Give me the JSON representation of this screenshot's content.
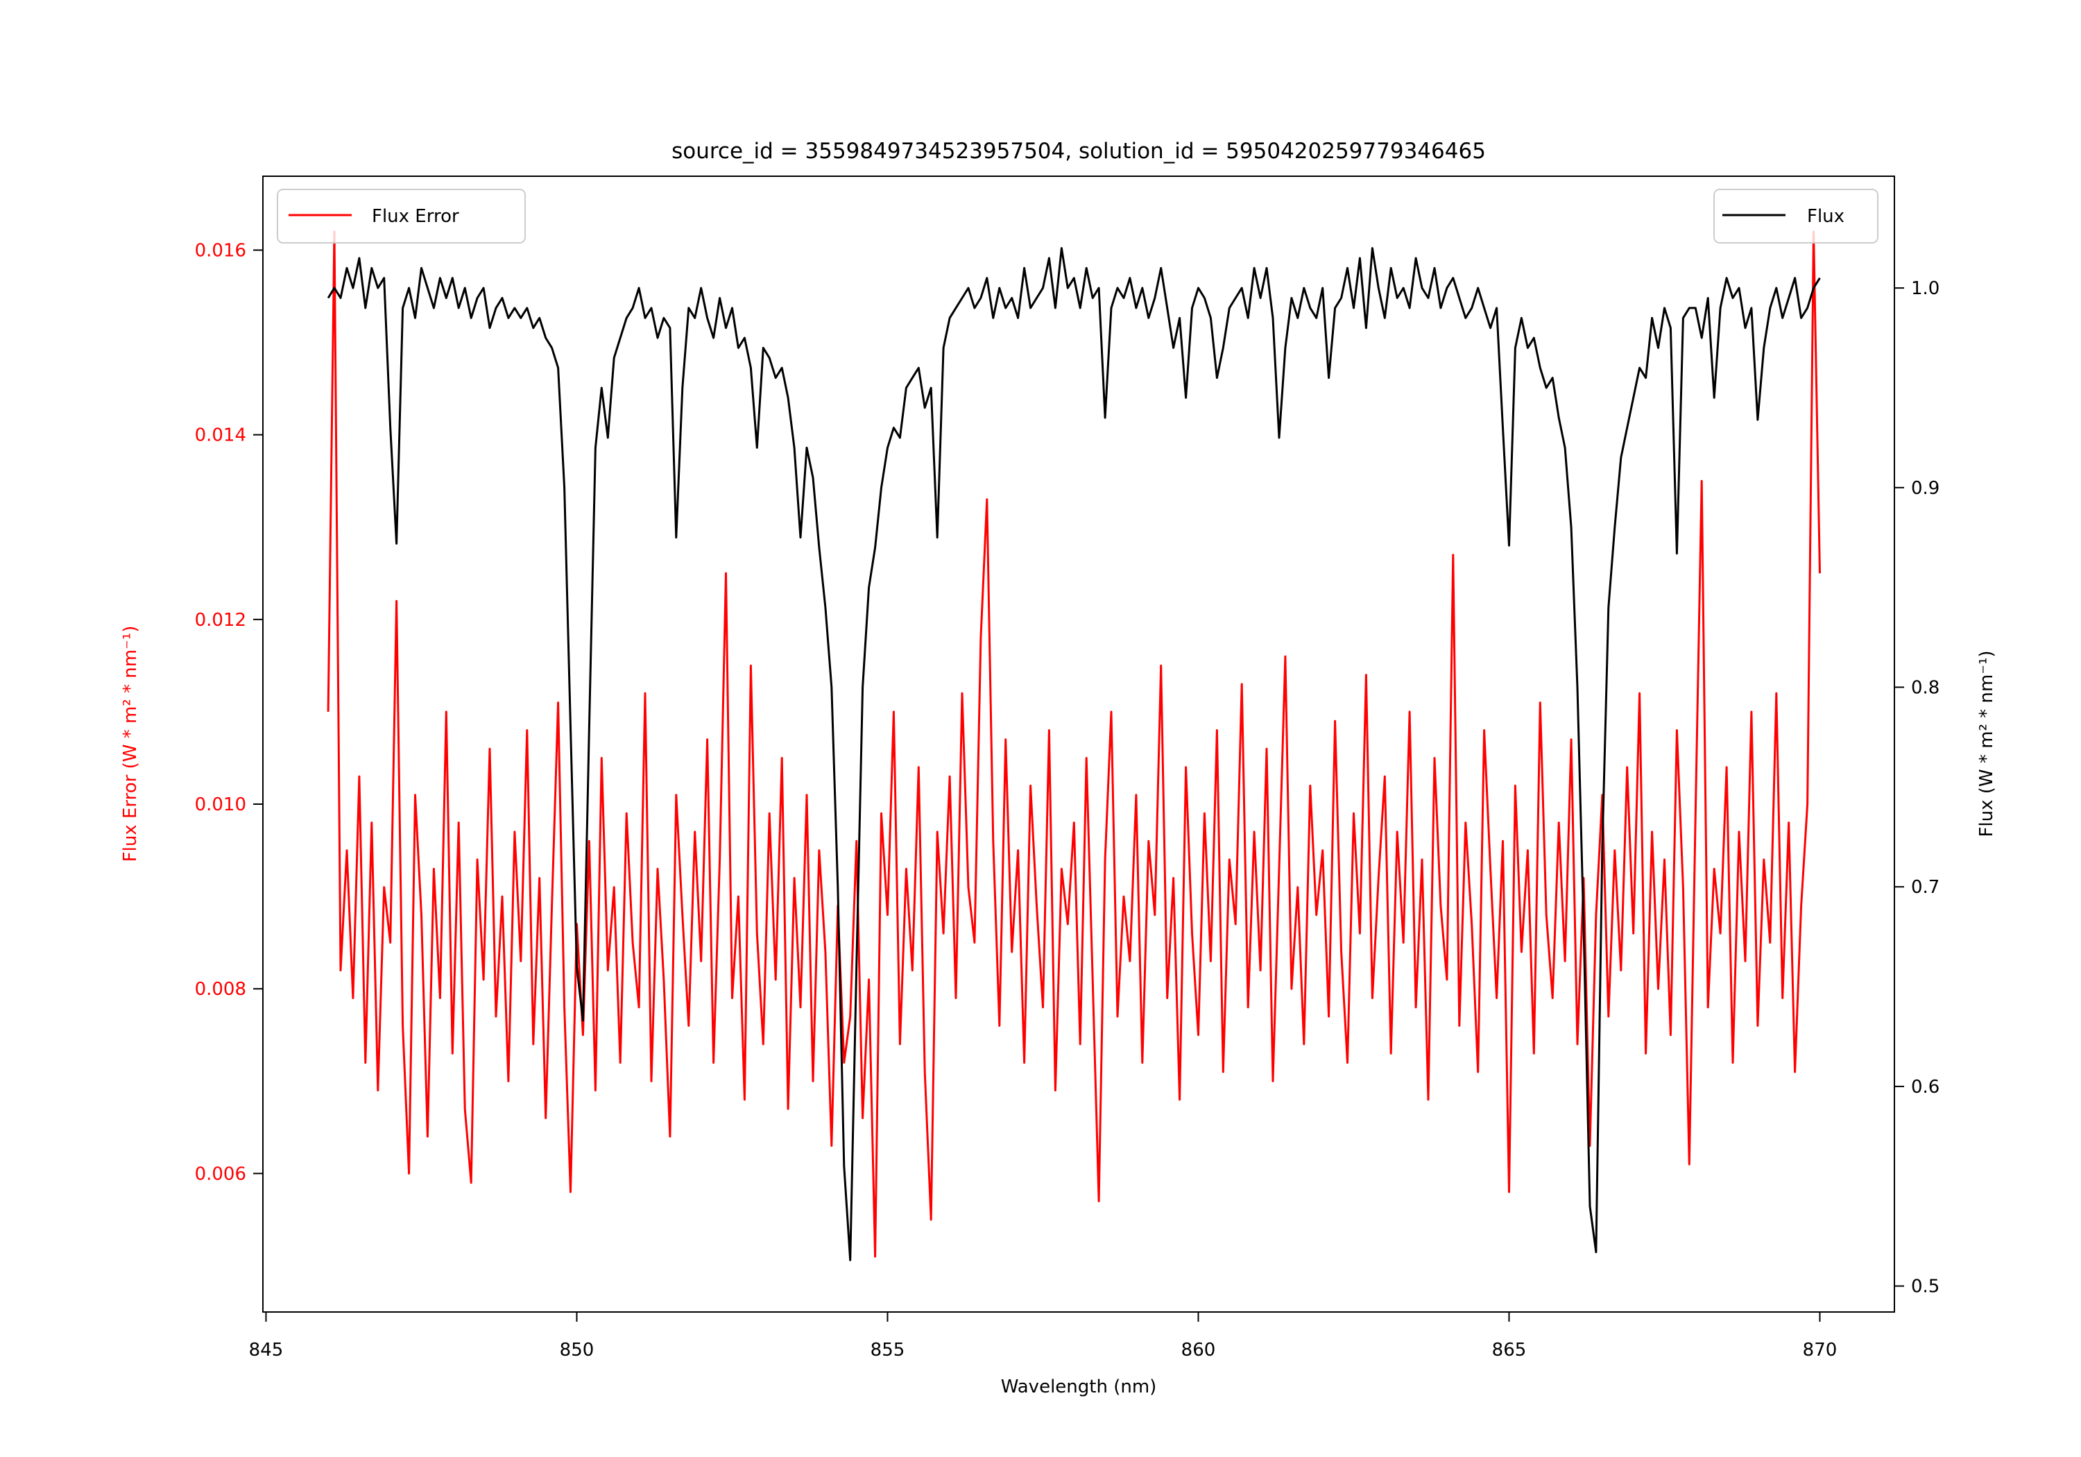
{
  "chart_data": {
    "type": "line",
    "title": "source_id = 3559849734523957504, solution_id = 5950420259779346465",
    "xlabel": "Wavelength (nm)",
    "ylabel_left": "Flux Error (W * m² * nm⁻¹)",
    "ylabel_right": "Flux (W * m² * nm⁻¹)",
    "xlim": [
      844.95,
      871.2
    ],
    "ylim_left": [
      0.0045,
      0.0168
    ],
    "ylim_right": [
      0.487,
      1.056
    ],
    "grid": false,
    "x_ticks": [
      845,
      850,
      855,
      860,
      865,
      870
    ],
    "x_tick_labels": [
      "845",
      "850",
      "855",
      "860",
      "865",
      "870"
    ],
    "y_left_ticks": [
      0.006,
      0.008,
      0.01,
      0.012,
      0.014,
      0.016
    ],
    "y_left_tick_labels": [
      "0.006",
      "0.008",
      "0.010",
      "0.012",
      "0.014",
      "0.016"
    ],
    "y_right_ticks": [
      0.5,
      0.6,
      0.7,
      0.8,
      0.9,
      1.0
    ],
    "y_right_tick_labels": [
      "0.5",
      "0.6",
      "0.7",
      "0.8",
      "0.9",
      "1.0"
    ],
    "x_start": 846.0,
    "x_step": 0.1,
    "series": [
      {
        "name": "Flux Error",
        "axis": "left",
        "color": "#ff0000",
        "legend": "upper-left",
        "values": [
          0.011,
          0.0162,
          0.0082,
          0.0095,
          0.0079,
          0.0103,
          0.0072,
          0.0098,
          0.0069,
          0.0091,
          0.0085,
          0.0122,
          0.0076,
          0.006,
          0.0101,
          0.0088,
          0.0064,
          0.0093,
          0.0079,
          0.011,
          0.0073,
          0.0098,
          0.0067,
          0.0059,
          0.0094,
          0.0081,
          0.0106,
          0.0077,
          0.009,
          0.007,
          0.0097,
          0.0083,
          0.0108,
          0.0074,
          0.0092,
          0.0066,
          0.0089,
          0.0111,
          0.0078,
          0.0058,
          0.0087,
          0.0075,
          0.0096,
          0.0069,
          0.0105,
          0.0082,
          0.0091,
          0.0072,
          0.0099,
          0.0085,
          0.0078,
          0.0112,
          0.007,
          0.0093,
          0.0081,
          0.0064,
          0.0101,
          0.0088,
          0.0076,
          0.0097,
          0.0083,
          0.0107,
          0.0072,
          0.0094,
          0.0125,
          0.0079,
          0.009,
          0.0068,
          0.0115,
          0.0086,
          0.0074,
          0.0099,
          0.0081,
          0.0105,
          0.0067,
          0.0092,
          0.0078,
          0.0101,
          0.007,
          0.0095,
          0.0084,
          0.0063,
          0.0089,
          0.0072,
          0.0077,
          0.0096,
          0.0066,
          0.0081,
          0.0051,
          0.0099,
          0.0088,
          0.011,
          0.0074,
          0.0093,
          0.0082,
          0.0104,
          0.0071,
          0.0055,
          0.0097,
          0.0086,
          0.0103,
          0.0079,
          0.0112,
          0.0091,
          0.0085,
          0.0118,
          0.0133,
          0.0096,
          0.0076,
          0.0107,
          0.0084,
          0.0095,
          0.0072,
          0.0102,
          0.0089,
          0.0078,
          0.0108,
          0.0069,
          0.0093,
          0.0087,
          0.0098,
          0.0074,
          0.0105,
          0.0081,
          0.0057,
          0.0094,
          0.011,
          0.0077,
          0.009,
          0.0083,
          0.0101,
          0.0072,
          0.0096,
          0.0088,
          0.0115,
          0.0079,
          0.0092,
          0.0068,
          0.0104,
          0.0086,
          0.0075,
          0.0099,
          0.0083,
          0.0108,
          0.0071,
          0.0094,
          0.0087,
          0.0113,
          0.0078,
          0.0097,
          0.0082,
          0.0106,
          0.007,
          0.0093,
          0.0116,
          0.008,
          0.0091,
          0.0074,
          0.0102,
          0.0088,
          0.0095,
          0.0077,
          0.0109,
          0.0084,
          0.0072,
          0.0099,
          0.0086,
          0.0114,
          0.0079,
          0.0092,
          0.0103,
          0.0073,
          0.0097,
          0.0085,
          0.011,
          0.0078,
          0.0094,
          0.0068,
          0.0105,
          0.0089,
          0.0081,
          0.0127,
          0.0076,
          0.0098,
          0.0087,
          0.0071,
          0.0108,
          0.0093,
          0.0079,
          0.0096,
          0.0058,
          0.0102,
          0.0084,
          0.0095,
          0.0073,
          0.0111,
          0.0088,
          0.0079,
          0.0098,
          0.0083,
          0.0107,
          0.0074,
          0.0092,
          0.0063,
          0.0088,
          0.0101,
          0.0077,
          0.0095,
          0.0082,
          0.0104,
          0.0086,
          0.0112,
          0.0073,
          0.0097,
          0.008,
          0.0094,
          0.0075,
          0.0108,
          0.0091,
          0.0061,
          0.0099,
          0.0135,
          0.0078,
          0.0093,
          0.0086,
          0.0104,
          0.0072,
          0.0097,
          0.0083,
          0.011,
          0.0076,
          0.0094,
          0.0085,
          0.0112,
          0.0079,
          0.0098,
          0.0071,
          0.0089,
          0.01,
          0.0162,
          0.0125
        ]
      },
      {
        "name": "Flux",
        "axis": "right",
        "color": "#000000",
        "legend": "upper-right",
        "values": [
          0.995,
          1.0,
          0.995,
          1.01,
          1.0,
          1.015,
          0.99,
          1.01,
          1.0,
          1.005,
          0.93,
          0.872,
          0.99,
          1.0,
          0.985,
          1.01,
          1.0,
          0.99,
          1.005,
          0.995,
          1.005,
          0.99,
          1.0,
          0.985,
          0.995,
          1.0,
          0.98,
          0.99,
          0.995,
          0.985,
          0.99,
          0.985,
          0.99,
          0.98,
          0.985,
          0.975,
          0.97,
          0.96,
          0.9,
          0.78,
          0.66,
          0.633,
          0.78,
          0.92,
          0.95,
          0.925,
          0.965,
          0.975,
          0.985,
          0.99,
          1.0,
          0.985,
          0.99,
          0.975,
          0.985,
          0.98,
          0.875,
          0.95,
          0.99,
          0.985,
          1.0,
          0.985,
          0.975,
          0.995,
          0.98,
          0.99,
          0.97,
          0.975,
          0.96,
          0.92,
          0.97,
          0.965,
          0.955,
          0.96,
          0.945,
          0.92,
          0.875,
          0.92,
          0.905,
          0.87,
          0.84,
          0.8,
          0.7,
          0.56,
          0.513,
          0.66,
          0.8,
          0.85,
          0.87,
          0.9,
          0.92,
          0.93,
          0.925,
          0.95,
          0.955,
          0.96,
          0.94,
          0.95,
          0.875,
          0.97,
          0.985,
          0.99,
          0.995,
          1.0,
          0.99,
          0.995,
          1.005,
          0.985,
          1.0,
          0.99,
          0.995,
          0.985,
          1.01,
          0.99,
          0.995,
          1.0,
          1.015,
          0.99,
          1.02,
          1.0,
          1.005,
          0.99,
          1.01,
          0.995,
          1.0,
          0.935,
          0.99,
          1.0,
          0.995,
          1.005,
          0.99,
          1.0,
          0.985,
          0.995,
          1.01,
          0.99,
          0.97,
          0.985,
          0.945,
          0.99,
          1.0,
          0.995,
          0.985,
          0.955,
          0.97,
          0.99,
          0.995,
          1.0,
          0.985,
          1.01,
          0.995,
          1.01,
          0.985,
          0.925,
          0.97,
          0.995,
          0.985,
          1.0,
          0.99,
          0.985,
          1.0,
          0.955,
          0.99,
          0.995,
          1.01,
          0.99,
          1.015,
          0.98,
          1.02,
          1.0,
          0.985,
          1.01,
          0.995,
          1.0,
          0.99,
          1.015,
          1.0,
          0.995,
          1.01,
          0.99,
          1.0,
          1.005,
          0.995,
          0.985,
          0.99,
          1.0,
          0.99,
          0.98,
          0.99,
          0.93,
          0.871,
          0.97,
          0.985,
          0.97,
          0.975,
          0.96,
          0.95,
          0.955,
          0.935,
          0.92,
          0.88,
          0.8,
          0.68,
          0.54,
          0.517,
          0.72,
          0.84,
          0.88,
          0.915,
          0.93,
          0.945,
          0.96,
          0.955,
          0.985,
          0.97,
          0.99,
          0.98,
          0.867,
          0.985,
          0.99,
          0.99,
          0.975,
          0.995,
          0.945,
          0.99,
          1.005,
          0.995,
          1.0,
          0.98,
          0.99,
          0.934,
          0.97,
          0.99,
          1.0,
          0.985,
          0.995,
          1.005,
          0.985,
          0.99,
          1.0,
          1.005
        ]
      }
    ]
  }
}
